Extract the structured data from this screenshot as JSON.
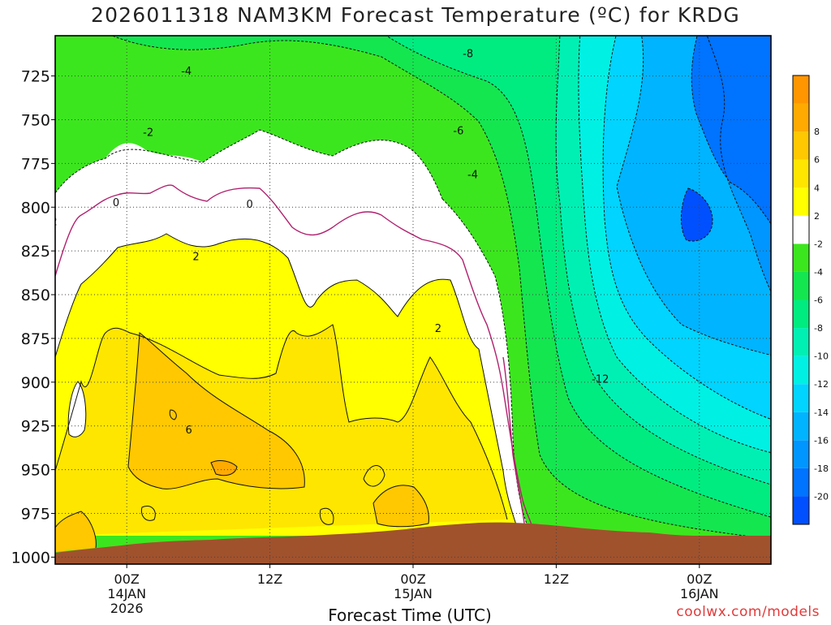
{
  "title": "2026011318 NAM3KM Forecast Temperature (ºC) for KRDG",
  "credit": "coolwx.com/models",
  "chart_data": {
    "type": "heatmap",
    "title": "2026011318 NAM3KM Forecast Temperature (ºC) for KRDG",
    "xlabel": "Forecast Time (UTC)",
    "ylabel": "",
    "x_start": "2026-01-13 18Z",
    "x_end": "2026-01-16 06Z",
    "x_ticks": [
      {
        "label": "00Z",
        "sub": "14JAN",
        "sub2": "2026",
        "time": "2026-01-14 00Z"
      },
      {
        "label": "12Z",
        "sub": "",
        "sub2": "",
        "time": "2026-01-14 12Z"
      },
      {
        "label": "00Z",
        "sub": "15JAN",
        "sub2": "",
        "time": "2026-01-15 00Z"
      },
      {
        "label": "12Z",
        "sub": "",
        "sub2": "",
        "time": "2026-01-15 12Z"
      },
      {
        "label": "00Z",
        "sub": "16JAN",
        "sub2": "",
        "time": "2026-01-16 00Z"
      }
    ],
    "y_ticks": [
      725,
      750,
      775,
      800,
      825,
      850,
      875,
      900,
      925,
      950,
      975,
      1000
    ],
    "y_top_hPa": 702,
    "y_bottom_hPa": 1004,
    "y_unit": "hPa",
    "grid": true,
    "colorbar": {
      "placement": "right",
      "levels": [
        {
          "label": "",
          "color": "#0050ff"
        },
        {
          "label": "-20",
          "color": "#0073ff"
        },
        {
          "label": "-18",
          "color": "#0096ff"
        },
        {
          "label": "-16",
          "color": "#00b4ff"
        },
        {
          "label": "-14",
          "color": "#00d4ff"
        },
        {
          "label": "-12",
          "color": "#00f0e4"
        },
        {
          "label": "-10",
          "color": "#00f0b4"
        },
        {
          "label": "-8",
          "color": "#00ec80"
        },
        {
          "label": "-6",
          "color": "#14e650"
        },
        {
          "label": "-4",
          "color": "#3ce61e"
        },
        {
          "label": "-2",
          "color": "#ffffff"
        },
        {
          "label": "2",
          "color": "#ffff00"
        },
        {
          "label": "4",
          "color": "#ffe600"
        },
        {
          "label": "6",
          "color": "#ffc800"
        },
        {
          "label": "8",
          "color": "#ffaa00"
        },
        {
          "label": "",
          "color": "#ff9600"
        }
      ]
    },
    "contour_labels": [
      {
        "text": "-8",
        "hours": 34.6,
        "hPa": 712
      },
      {
        "text": "-4",
        "hours": 11.0,
        "hPa": 722
      },
      {
        "text": "-2",
        "hours": 7.8,
        "hPa": 757
      },
      {
        "text": "-6",
        "hours": 33.8,
        "hPa": 756
      },
      {
        "text": "-4",
        "hours": 35.0,
        "hPa": 781
      },
      {
        "text": "0",
        "hours": 5.1,
        "hPa": 797
      },
      {
        "text": "0",
        "hours": 16.3,
        "hPa": 798
      },
      {
        "text": "2",
        "hours": -0.1,
        "hPa": 808
      },
      {
        "text": "2",
        "hours": 11.8,
        "hPa": 828
      },
      {
        "text": "2",
        "hours": 32.1,
        "hPa": 869
      },
      {
        "text": "6",
        "hours": 11.2,
        "hPa": 927
      },
      {
        "text": "-12",
        "hours": 45.7,
        "hPa": 898
      }
    ],
    "terrain": {
      "color": "#a0522d",
      "label": "ground / surface pressure"
    }
  },
  "colors": {
    "terrain": "#a0522d",
    "contour": "#111111",
    "zero_contour": "#b0206e",
    "grid": "#444444",
    "credit": "#e23a3a"
  }
}
